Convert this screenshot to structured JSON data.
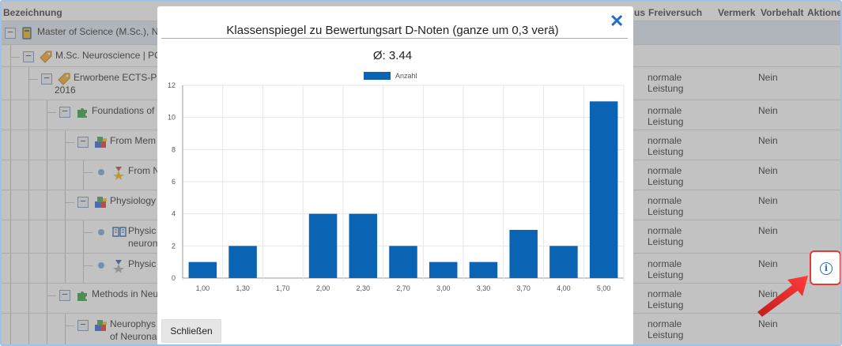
{
  "table": {
    "headers": {
      "bezeichnung": "Bezeichnung",
      "status_partial": "us",
      "freiversuch": "Freiversuch",
      "vermerk": "Vermerk",
      "vorbehalt": "Vorbehalt",
      "aktionen": "Aktione"
    },
    "rows": [
      {
        "label": "Master of Science (M.Sc.), N",
        "icon": "notebook-icon",
        "status_line1": "",
        "status_line2": "",
        "vorbehalt": ""
      },
      {
        "label": "M.Sc. Neuroscience | PC",
        "icon": "tag-icon",
        "status_line1": "",
        "status_line2": "",
        "vorbehalt": ""
      },
      {
        "label": "Erworbene ECTS-P",
        "label2": "2016",
        "icon": "tag-icon",
        "status_line1": "normale",
        "status_line2": "Leistung",
        "vorbehalt": "Nein"
      },
      {
        "label": "Foundations of",
        "icon": "puzzle-icon",
        "status_line1": "normale",
        "status_line2": "Leistung",
        "vorbehalt": "Nein"
      },
      {
        "label": "From Mem",
        "icon": "blocks-icon",
        "status_line1": "normale",
        "status_line2": "Leistung",
        "vorbehalt": "Nein"
      },
      {
        "label": "From N",
        "icon": "medal-icon",
        "status_line1": "normale",
        "status_line2": "Leistung",
        "vorbehalt": "Nein"
      },
      {
        "label": "Physiology",
        "icon": "blocks-icon",
        "status_line1": "normale",
        "status_line2": "Leistung",
        "vorbehalt": "Nein"
      },
      {
        "label": "Physic",
        "label2": "neuronal s",
        "icon": "book-icon",
        "status_line1": "normale",
        "status_line2": "Leistung",
        "vorbehalt": "Nein"
      },
      {
        "label": "Physic",
        "icon": "medal-grey-icon",
        "status_line1": "normale",
        "status_line2": "Leistung",
        "vorbehalt": "Nein"
      },
      {
        "label": "Methods in Neu",
        "icon": "puzzle-icon",
        "status_line1": "normale",
        "status_line2": "Leistung",
        "vorbehalt": "Nein"
      },
      {
        "label": "Neurophys",
        "label2": "of Neuronal Act",
        "icon": "blocks-icon",
        "status_line1": "normale",
        "status_line2": "Leistung",
        "vorbehalt": "Nein"
      }
    ]
  },
  "info_button": {
    "icon": "info-icon",
    "glyph": "i"
  },
  "modal": {
    "title": "Klassenspiegel zu Bewertungsart D-Noten (ganze um 0,3 verä)",
    "average": "Ø: 3.44",
    "close_icon": "close-icon",
    "close_glyph": "✕",
    "close_button": "Schließen"
  },
  "chart_data": {
    "type": "bar",
    "title": "",
    "xlabel": "",
    "ylabel": "",
    "categories": [
      "1,00",
      "1,30",
      "1,70",
      "2,00",
      "2,30",
      "2,70",
      "3,00",
      "3,30",
      "3,70",
      "4,00",
      "5,00"
    ],
    "series": [
      {
        "name": "Anzahl",
        "values": [
          1,
          2,
          0,
          4,
          4,
          2,
          1,
          1,
          3,
          2,
          11
        ],
        "color": "#0b63b3"
      }
    ],
    "ylim": [
      0,
      12
    ],
    "yticks": [
      0,
      2,
      4,
      6,
      8,
      10,
      12
    ],
    "grid": true,
    "legend_position": "top-center"
  },
  "colors": {
    "accent": "#2270c4",
    "bar": "#0b63b3",
    "highlight": "#e53935"
  }
}
